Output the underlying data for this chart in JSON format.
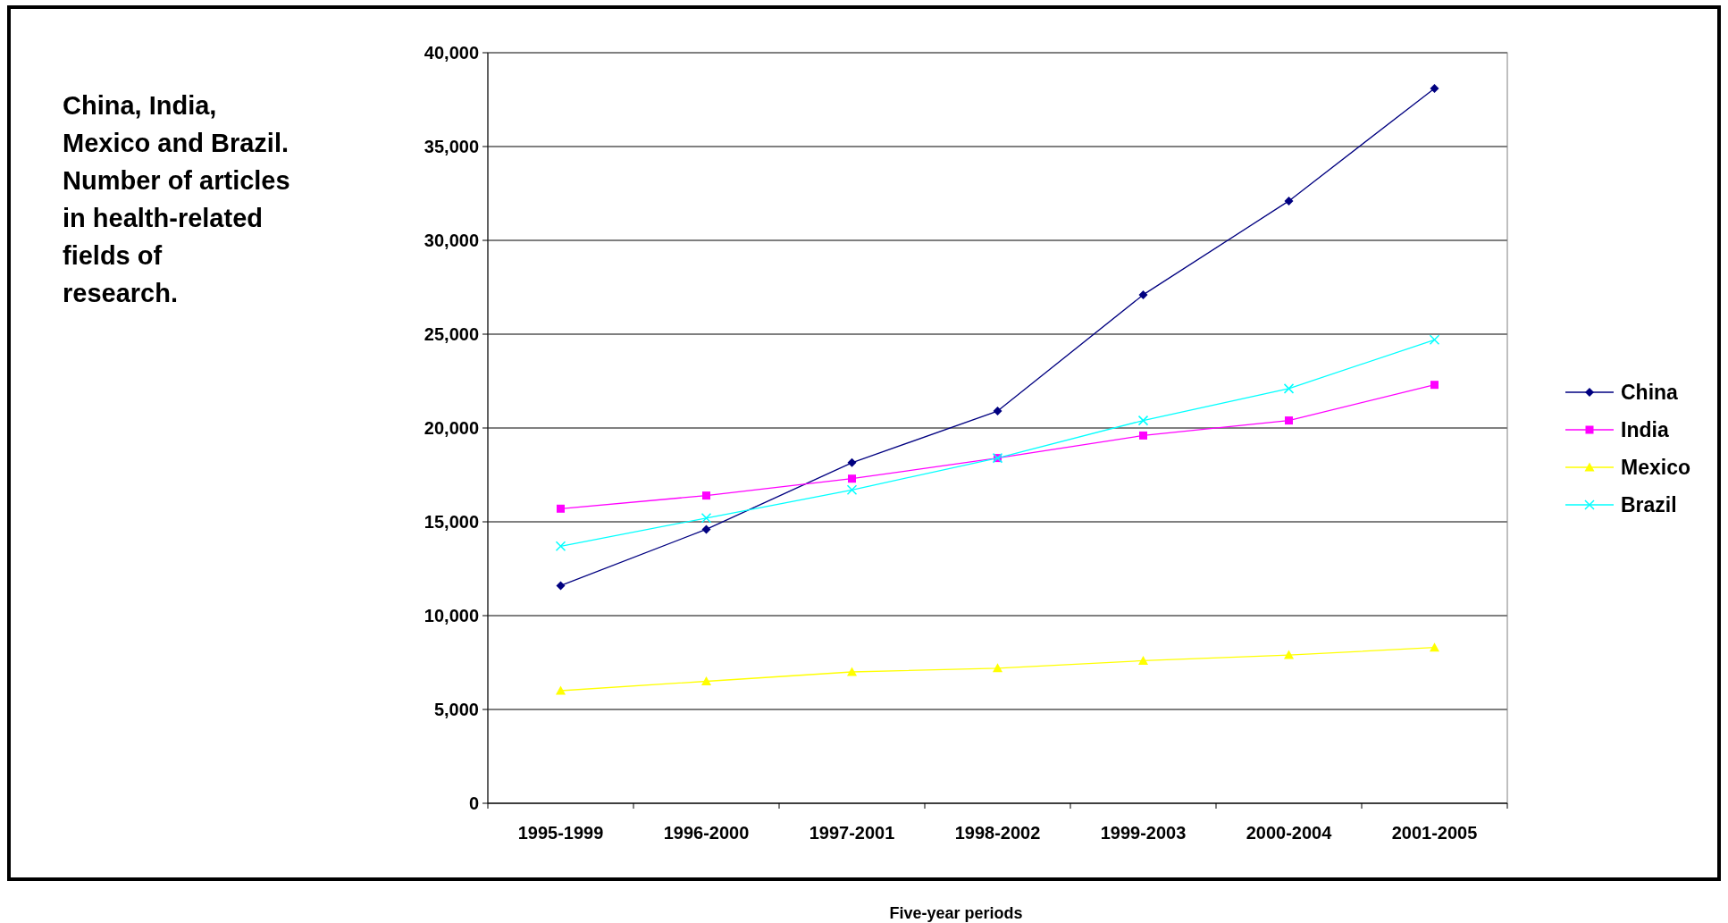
{
  "chart_data": {
    "type": "line",
    "title": "China, India, Mexico and Brazil. Number of articles in health-related fields of research.",
    "xlabel": "Five-year periods",
    "categories": [
      "1995-1999",
      "1996-2000",
      "1997-2001",
      "1998-2002",
      "1999-2003",
      "2000-2004",
      "2001-2005"
    ],
    "series": [
      {
        "name": "China",
        "color": "#000080",
        "marker": "diamond",
        "values": [
          11600,
          14600,
          18150,
          20900,
          27100,
          32100,
          38100
        ]
      },
      {
        "name": "India",
        "color": "#ff00ff",
        "marker": "square",
        "values": [
          15700,
          16400,
          17300,
          18400,
          19600,
          20400,
          22300
        ]
      },
      {
        "name": "Mexico",
        "color": "#ffff00",
        "marker": "triangle",
        "values": [
          6000,
          6500,
          7000,
          7200,
          7600,
          7900,
          8300
        ]
      },
      {
        "name": "Brazil",
        "color": "#00ffff",
        "marker": "cross",
        "values": [
          13700,
          15200,
          16700,
          18400,
          20400,
          22100,
          24700
        ]
      }
    ],
    "ylim": [
      0,
      40000
    ],
    "yticks": [
      {
        "value": 0,
        "label": "0"
      },
      {
        "value": 5000,
        "label": "5,000"
      },
      {
        "value": 10000,
        "label": "10,000"
      },
      {
        "value": 15000,
        "label": "15,000"
      },
      {
        "value": 20000,
        "label": "20,000"
      },
      {
        "value": 25000,
        "label": "25,000"
      },
      {
        "value": 30000,
        "label": "30,000"
      },
      {
        "value": 35000,
        "label": "35,000"
      },
      {
        "value": 40000,
        "label": "40,000"
      }
    ],
    "grid": "y",
    "legend": "right",
    "line_style": "solid"
  }
}
